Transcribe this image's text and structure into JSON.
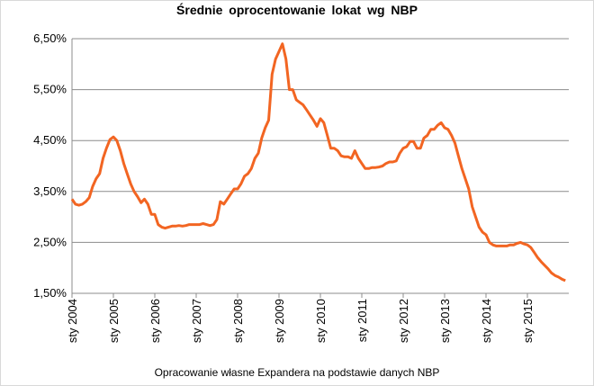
{
  "chart_data": {
    "type": "line",
    "title": "Średnie oprocentowanie lokat wg NBP",
    "footnote": "Opracowanie własne Expandera na podstawie danych NBP",
    "categories": [
      "sty 2004",
      null,
      null,
      null,
      null,
      null,
      null,
      null,
      null,
      null,
      null,
      null,
      "sty 2005",
      null,
      null,
      null,
      null,
      null,
      null,
      null,
      null,
      null,
      null,
      null,
      "sty 2006",
      null,
      null,
      null,
      null,
      null,
      null,
      null,
      null,
      null,
      null,
      null,
      "sty 2007",
      null,
      null,
      null,
      null,
      null,
      null,
      null,
      null,
      null,
      null,
      null,
      "sty 2008",
      null,
      null,
      null,
      null,
      null,
      null,
      null,
      null,
      null,
      null,
      null,
      "sty 2009",
      null,
      null,
      null,
      null,
      null,
      null,
      null,
      null,
      null,
      null,
      null,
      "sty 2010",
      null,
      null,
      null,
      null,
      null,
      null,
      null,
      null,
      null,
      null,
      null,
      "sty 2011",
      null,
      null,
      null,
      null,
      null,
      null,
      null,
      null,
      null,
      null,
      null,
      "sty 2012",
      null,
      null,
      null,
      null,
      null,
      null,
      null,
      null,
      null,
      null,
      null,
      "sty 2013",
      null,
      null,
      null,
      null,
      null,
      null,
      null,
      null,
      null,
      null,
      null,
      "sty 2014",
      null,
      null,
      null,
      null,
      null,
      null,
      null,
      null,
      null,
      null,
      null,
      "sty 2015",
      null,
      null,
      null,
      null,
      null,
      null,
      null,
      null,
      null,
      null,
      null
    ],
    "series": [
      {
        "color": "#f26522",
        "values": [
          3.35,
          3.25,
          3.23,
          3.25,
          3.3,
          3.38,
          3.6,
          3.75,
          3.85,
          4.15,
          4.35,
          4.52,
          4.57,
          4.5,
          4.3,
          4.05,
          3.85,
          3.65,
          3.5,
          3.4,
          3.28,
          3.35,
          3.25,
          3.05,
          3.05,
          2.85,
          2.8,
          2.78,
          2.8,
          2.82,
          2.82,
          2.83,
          2.82,
          2.83,
          2.85,
          2.85,
          2.85,
          2.85,
          2.87,
          2.85,
          2.83,
          2.85,
          2.95,
          3.3,
          3.25,
          3.35,
          3.45,
          3.55,
          3.55,
          3.65,
          3.8,
          3.85,
          3.95,
          4.15,
          4.25,
          4.55,
          4.75,
          4.9,
          5.8,
          6.1,
          6.25,
          6.4,
          6.1,
          5.5,
          5.5,
          5.3,
          5.25,
          5.2,
          5.1,
          5.0,
          4.9,
          4.78,
          4.93,
          4.85,
          4.6,
          4.35,
          4.35,
          4.3,
          4.2,
          4.18,
          4.18,
          4.15,
          4.3,
          4.15,
          4.05,
          3.95,
          3.95,
          3.97,
          3.97,
          3.98,
          4.0,
          4.05,
          4.08,
          4.08,
          4.1,
          4.25,
          4.35,
          4.38,
          4.48,
          4.48,
          4.35,
          4.35,
          4.55,
          4.6,
          4.72,
          4.72,
          4.8,
          4.85,
          4.75,
          4.72,
          4.6,
          4.45,
          4.2,
          3.95,
          3.75,
          3.55,
          3.2,
          3.0,
          2.8,
          2.7,
          2.65,
          2.5,
          2.45,
          2.43,
          2.43,
          2.43,
          2.43,
          2.45,
          2.45,
          2.48,
          2.5,
          2.47,
          2.45,
          2.4,
          2.3,
          2.2,
          2.12,
          2.05,
          1.98,
          1.9,
          1.85,
          1.82,
          1.78,
          1.75
        ]
      }
    ],
    "ylim": [
      1.5,
      6.5
    ],
    "yticks": [
      {
        "value": 1.5,
        "label": "1,50%"
      },
      {
        "value": 2.5,
        "label": "2,50%"
      },
      {
        "value": 3.5,
        "label": "3,50%"
      },
      {
        "value": 4.5,
        "label": "4,50%"
      },
      {
        "value": 5.5,
        "label": "5,50%"
      },
      {
        "value": 6.5,
        "label": "6,50%"
      }
    ],
    "grid": true
  }
}
